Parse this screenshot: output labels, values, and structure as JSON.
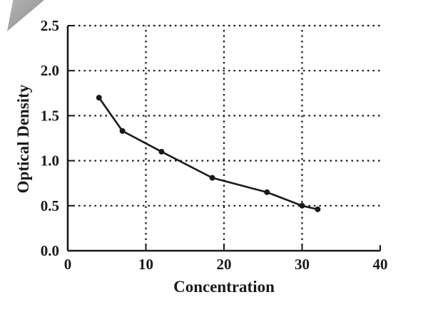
{
  "chart_data": {
    "type": "line",
    "title": "",
    "xlabel": "Concentration",
    "ylabel": "Optical Density",
    "x": [
      4,
      7,
      12,
      18.5,
      25.5,
      30,
      32
    ],
    "y": [
      1.7,
      1.33,
      1.1,
      0.81,
      0.65,
      0.5,
      0.46
    ],
    "xlim": [
      0,
      40
    ],
    "ylim": [
      0,
      2.5
    ],
    "x_ticks": [
      0,
      10,
      20,
      30,
      40
    ],
    "x_tick_labels": [
      "0",
      "10",
      "20",
      "30",
      "40"
    ],
    "y_ticks": [
      0,
      0.5,
      1.0,
      1.5,
      2.0,
      2.5
    ],
    "y_tick_labels": [
      "0.0",
      "0.5",
      "1.0",
      "1.5",
      "2.0",
      "2.5"
    ],
    "grid": true,
    "grid_style": "dashed",
    "legend": false,
    "line_color": "#1a1a1a",
    "marker": "circle"
  },
  "decoration": {
    "corner_fold": "page-corner-fold",
    "corner_fold_color": "#9e9e9e"
  }
}
